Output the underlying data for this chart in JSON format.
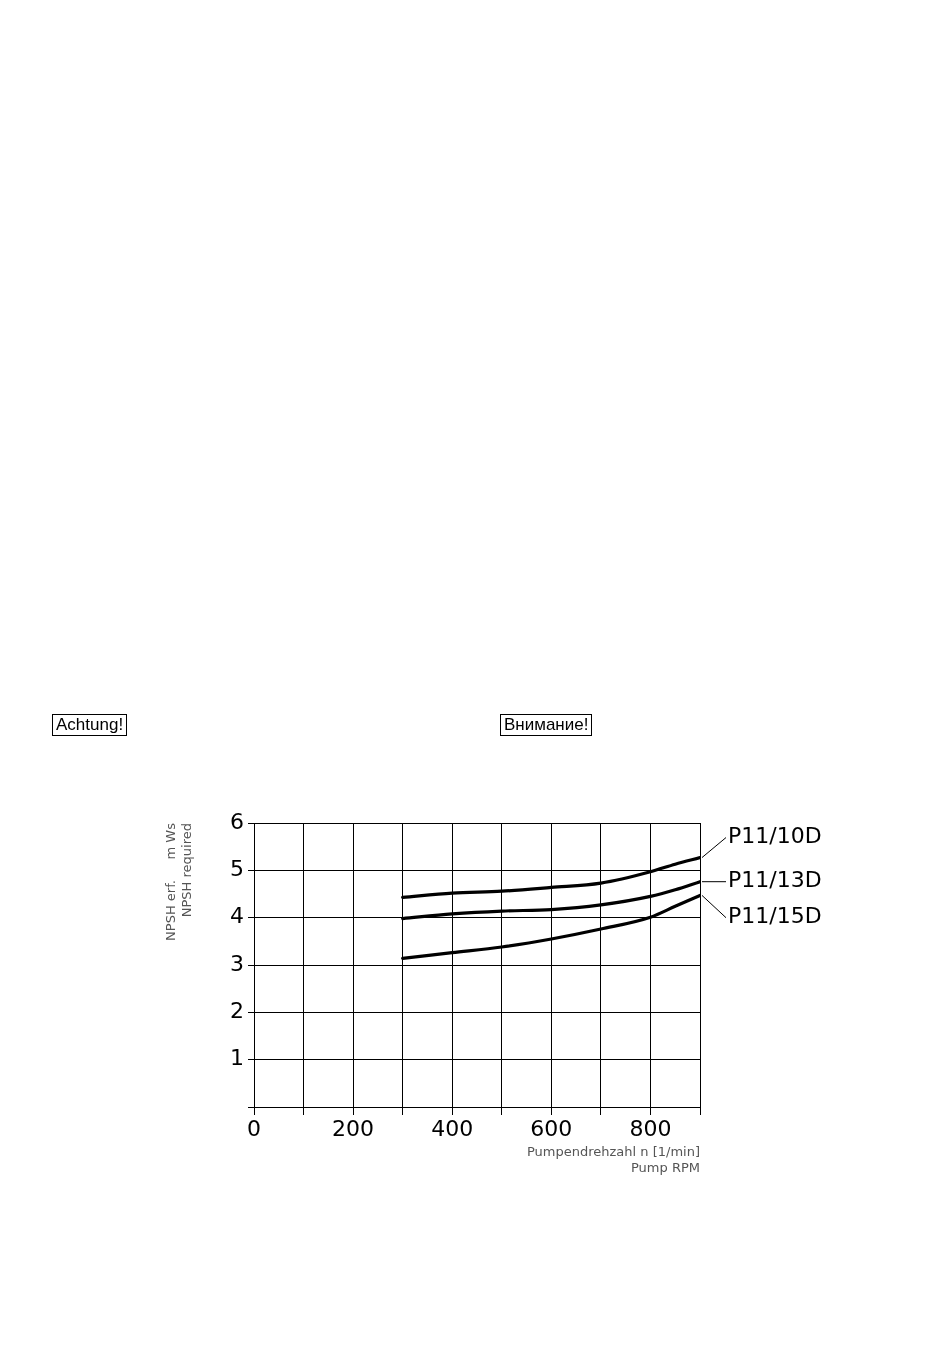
{
  "chart_data": {
    "type": "line",
    "xlabel": "Pumpendrehzahl n [1/min]\nPump RPM",
    "ylabel": "NPSH erf.     m Ws\nNPSH required",
    "annotations": [
      "Achtung!",
      "Внимание!"
    ],
    "xlim": [
      0,
      900
    ],
    "xticks": [
      0,
      {
        "value": 100,
        "label": null
      },
      200,
      {
        "value": 300,
        "label": null
      },
      400,
      {
        "value": 500,
        "label": null
      },
      600,
      {
        "value": 700,
        "label": null
      },
      800,
      {
        "value": 900,
        "label": null
      }
    ],
    "ylim": [
      0,
      6
    ],
    "yticks": [
      {
        "value": 0,
        "label": null
      },
      1,
      2,
      3,
      4,
      5,
      6
    ],
    "grid": true,
    "legend": "right",
    "marker": "none",
    "line_style": "solid",
    "x": [
      300,
      400,
      500,
      600,
      700,
      800,
      850,
      900
    ],
    "series": [
      {
        "name": "P11/10D",
        "color": "#000000",
        "values": [
          4.43,
          4.52,
          4.56,
          4.64,
          4.73,
          4.97,
          5.13,
          5.27
        ]
      },
      {
        "name": "P11/13D",
        "color": "#000000",
        "values": [
          3.98,
          4.08,
          4.14,
          4.17,
          4.27,
          4.45,
          4.59,
          4.76
        ]
      },
      {
        "name": "P11/15D",
        "color": "#000000",
        "values": [
          3.14,
          3.26,
          3.38,
          3.55,
          3.76,
          4.01,
          4.24,
          4.47
        ]
      }
    ]
  }
}
